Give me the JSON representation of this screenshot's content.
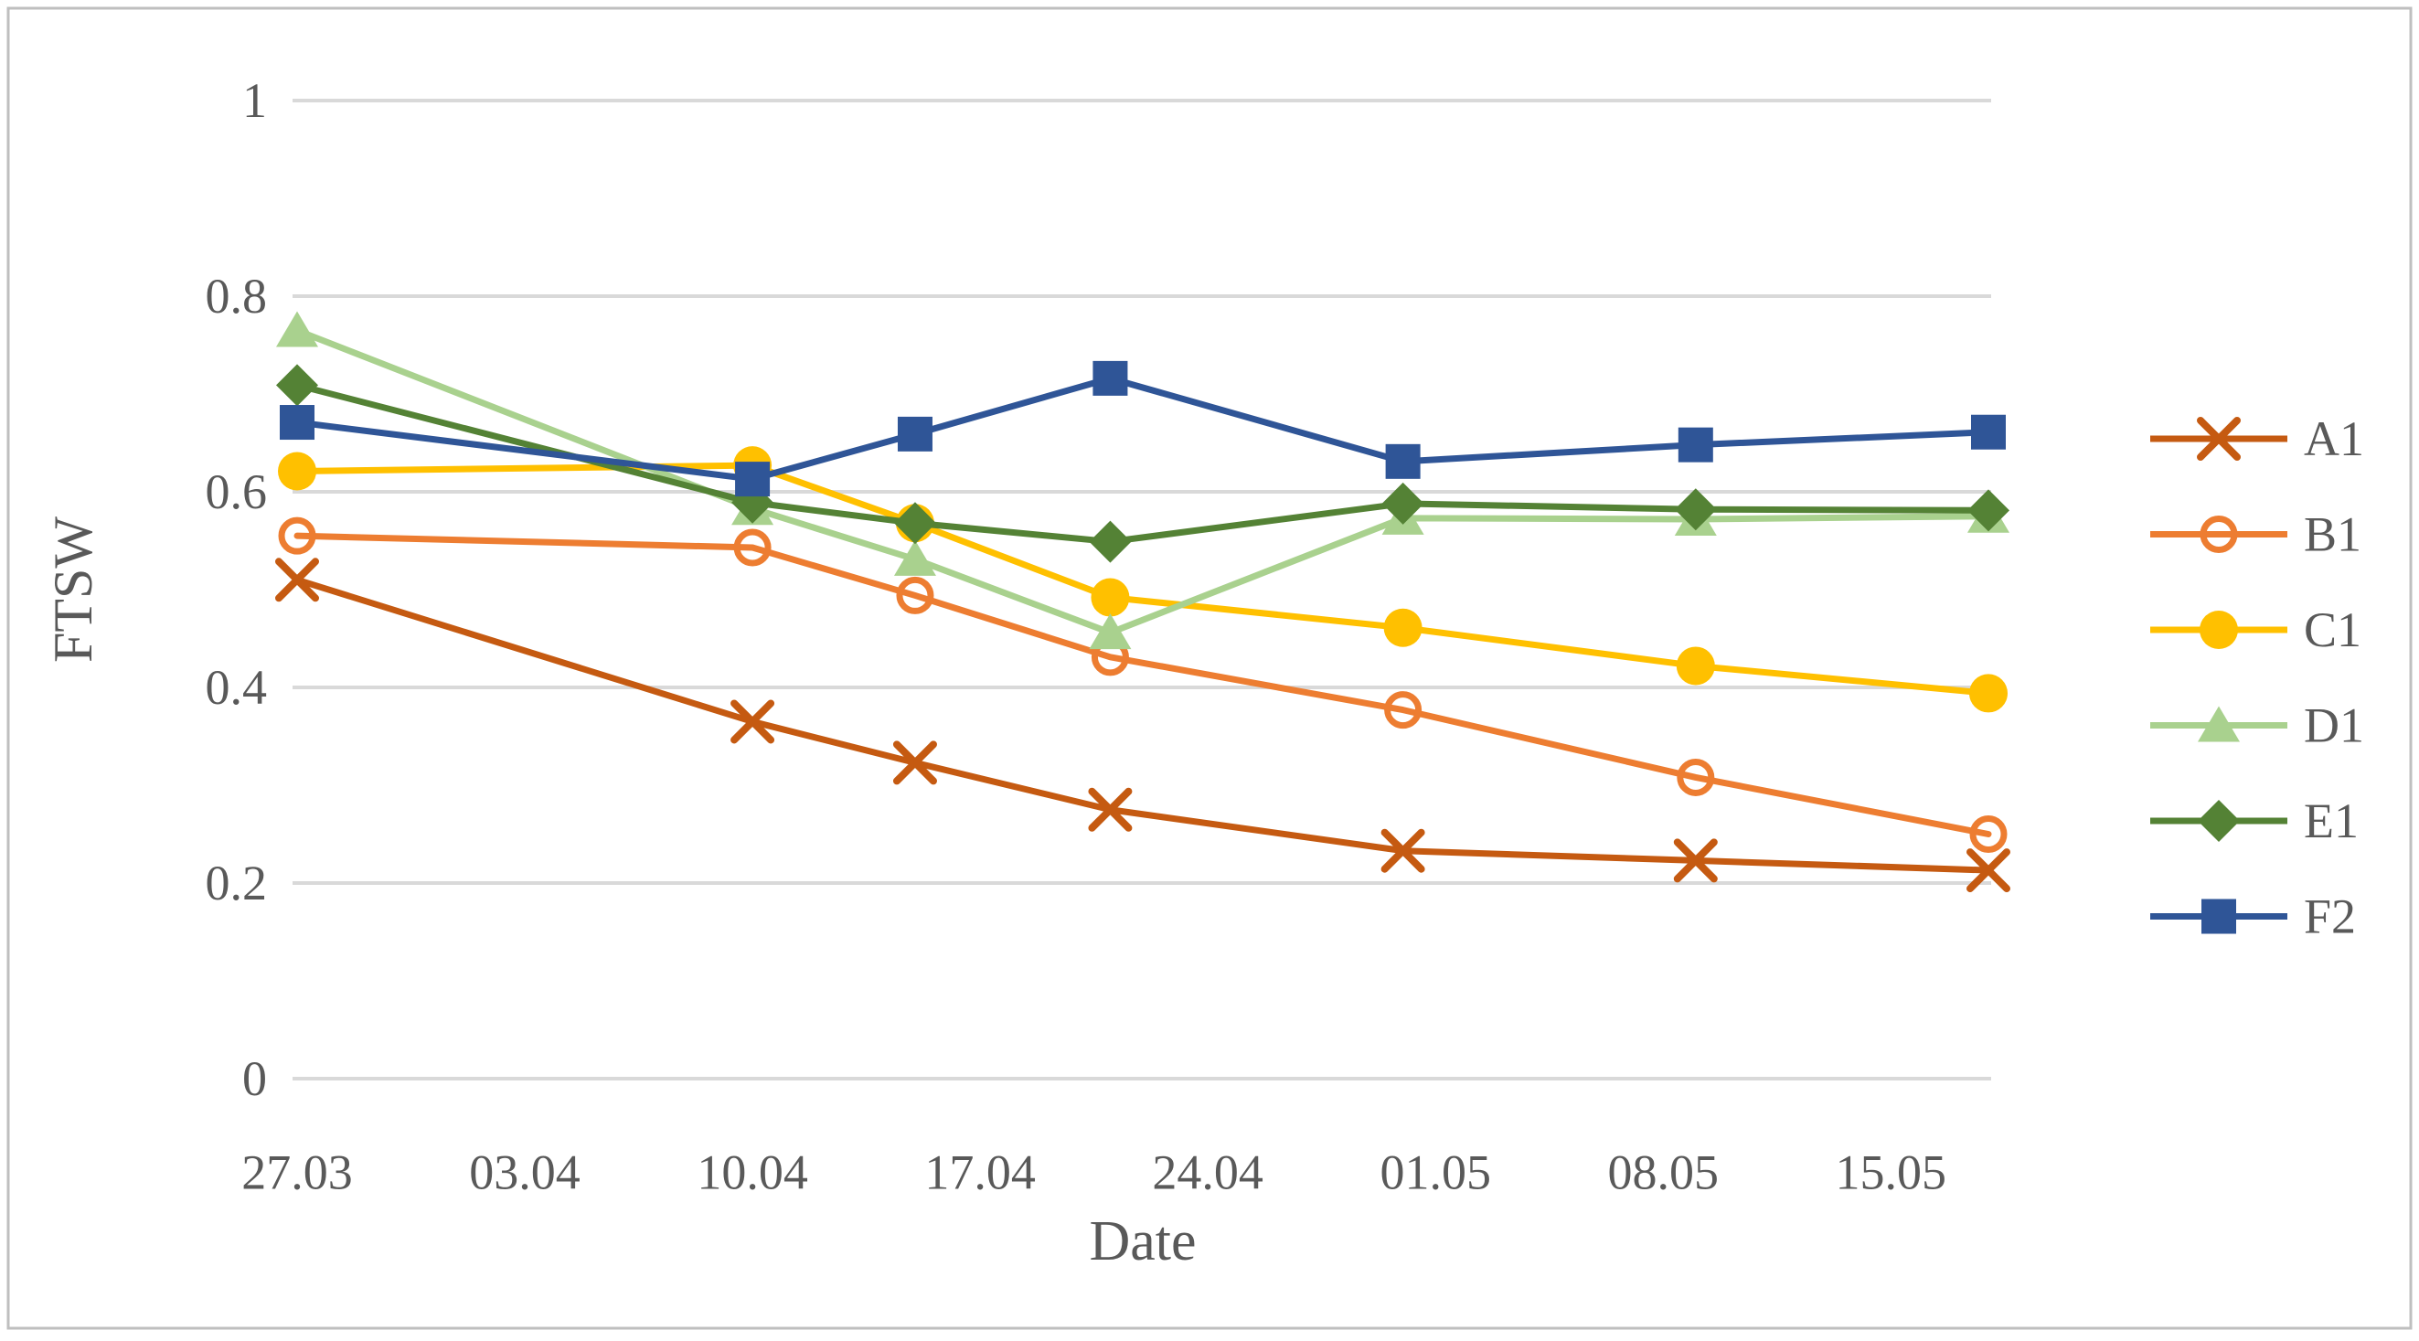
{
  "figure": {
    "background": "#FFFFFF",
    "border_color": "#BFBFBF",
    "grid_color": "#D9D9D9",
    "text_color": "#595959"
  },
  "chart_data": {
    "type": "line",
    "title": "",
    "xlabel": "Date",
    "ylabel": "FTSW",
    "ylim": [
      0,
      1
    ],
    "yticks": [
      0,
      0.2,
      0.4,
      0.6,
      0.8,
      1
    ],
    "ytick_labels": [
      "0",
      "0.2",
      "0.4",
      "0.6",
      "0.8",
      "1"
    ],
    "x_tick_labels": [
      "27.03",
      "03.04",
      "10.04",
      "17.04",
      "24.04",
      "01.05",
      "08.05",
      "15.05"
    ],
    "x_tick_days": [
      0,
      7,
      14,
      21,
      28,
      35,
      42,
      49
    ],
    "point_dates": [
      "27.03",
      "10.04",
      "15.04",
      "21.04",
      "30.04",
      "09.05",
      "18.05"
    ],
    "point_days": [
      0,
      14,
      19,
      25,
      34,
      43,
      52
    ],
    "grid": true,
    "legend_position": "right",
    "series": [
      {
        "name": "A1",
        "color": "#C55A11",
        "marker": "x",
        "values": [
          0.51,
          0.365,
          0.323,
          0.275,
          0.233,
          0.223,
          0.213
        ]
      },
      {
        "name": "B1",
        "color": "#ED7D31",
        "marker": "circle-open",
        "values": [
          0.555,
          0.543,
          0.494,
          0.431,
          0.377,
          0.308,
          0.25
        ]
      },
      {
        "name": "C1",
        "color": "#FFC000",
        "marker": "circle",
        "values": [
          0.621,
          0.627,
          0.568,
          0.492,
          0.461,
          0.422,
          0.394
        ]
      },
      {
        "name": "D1",
        "color": "#A9D18E",
        "marker": "triangle",
        "values": [
          0.765,
          0.583,
          0.531,
          0.456,
          0.573,
          0.572,
          0.575
        ]
      },
      {
        "name": "E1",
        "color": "#548235",
        "marker": "diamond",
        "values": [
          0.709,
          0.589,
          0.568,
          0.549,
          0.588,
          0.582,
          0.581
        ]
      },
      {
        "name": "F2",
        "color": "#2F5597",
        "marker": "square",
        "values": [
          0.671,
          0.613,
          0.659,
          0.716,
          0.631,
          0.648,
          0.661
        ]
      }
    ]
  }
}
